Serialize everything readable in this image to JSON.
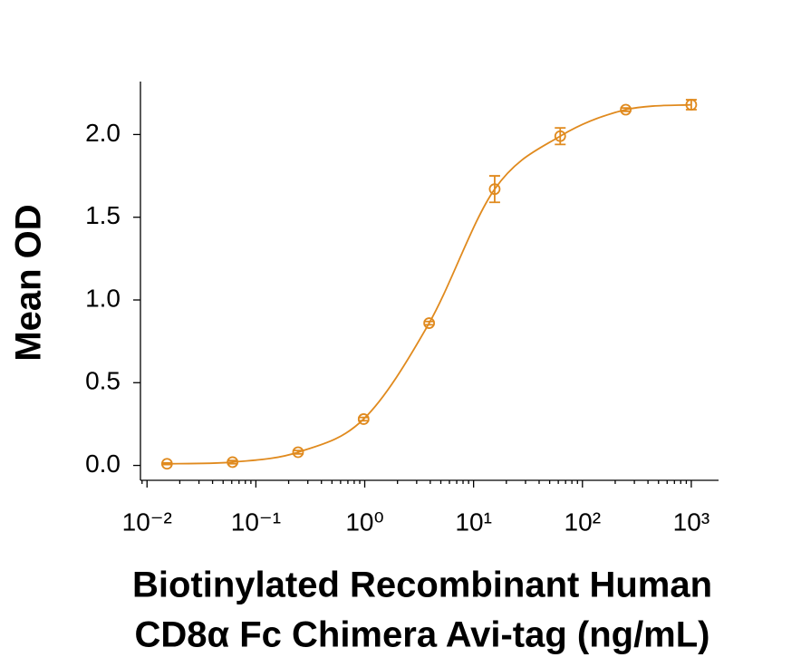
{
  "chart_data": {
    "type": "scatter",
    "ylabel": "Mean OD",
    "xlabel": [
      "Biotinylated Recombinant Human",
      "CD8α Fc Chimera Avi-tag (ng/mL)"
    ],
    "x": [
      0.0152587890625,
      0.06103515625,
      0.244140625,
      0.9765625,
      3.90625,
      15.625,
      62.5,
      250,
      1000
    ],
    "values": [
      0.01,
      0.02,
      0.08,
      0.28,
      0.86,
      1.67,
      1.99,
      2.15,
      2.18
    ],
    "errors": [
      0.005,
      0.01,
      0.01,
      0.01,
      0.01,
      0.08,
      0.05,
      0.01,
      0.03
    ],
    "color": "#e08a1e",
    "xscale": "log",
    "xlim": [
      0.0087,
      1780
    ],
    "xticks": [
      {
        "value": 0.01,
        "label": "10⁻²"
      },
      {
        "value": 0.1,
        "label": "10⁻¹"
      },
      {
        "value": 1,
        "label": "10⁰"
      },
      {
        "value": 10,
        "label": "10¹"
      },
      {
        "value": 100,
        "label": "10²"
      },
      {
        "value": 1000,
        "label": "10³"
      }
    ],
    "ylim": [
      -0.09,
      2.32
    ],
    "yticks": [
      {
        "value": 0,
        "label": "0.0"
      },
      {
        "value": 0.5,
        "label": "0.5"
      },
      {
        "value": 1,
        "label": "1.0"
      },
      {
        "value": 1.5,
        "label": "1.5"
      },
      {
        "value": 2,
        "label": "2.0"
      }
    ]
  }
}
